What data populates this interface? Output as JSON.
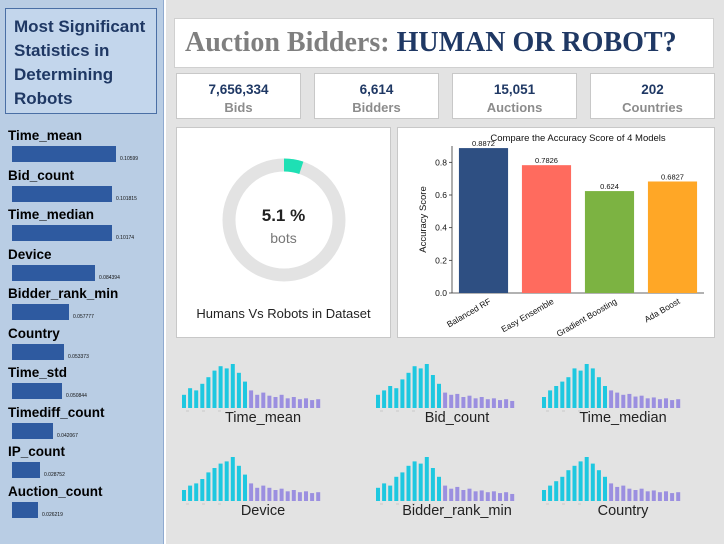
{
  "sidebar": {
    "title": "Most Significant Statistics in Determining Robots",
    "features": [
      {
        "name": "Time_mean",
        "value": 0.10599,
        "value_label": "0.10599"
      },
      {
        "name": "Bid_count",
        "value": 0.101815,
        "value_label": "0.101815"
      },
      {
        "name": "Time_median",
        "value": 0.10174,
        "value_label": "0.10174"
      },
      {
        "name": "Device",
        "value": 0.084394,
        "value_label": "0.084394"
      },
      {
        "name": "Bidder_rank_min",
        "value": 0.057777,
        "value_label": "0.057777"
      },
      {
        "name": "Country",
        "value": 0.053373,
        "value_label": "0.053373"
      },
      {
        "name": "Time_std",
        "value": 0.050844,
        "value_label": "0.050844"
      },
      {
        "name": "Timediff_count",
        "value": 0.042067,
        "value_label": "0.042067"
      },
      {
        "name": "IP_count",
        "value": 0.028752,
        "value_label": "0.028752"
      },
      {
        "name": "Auction_count",
        "value": 0.026219,
        "value_label": "0.026219"
      }
    ],
    "bar_color": "#2e5aa0"
  },
  "header": {
    "title_part1": "Auction Bidders: ",
    "title_part2": "HUMAN OR ROBOT?"
  },
  "kpis": [
    {
      "value": "7,656,334",
      "label": "Bids"
    },
    {
      "value": "6,614",
      "label": "Bidders"
    },
    {
      "value": "15,051",
      "label": "Auctions"
    },
    {
      "value": "202",
      "label": "Countries"
    }
  ],
  "donut": {
    "percent": 5.1,
    "percent_label": "5.1 %",
    "sublabel": "bots",
    "caption": "Humans Vs Robots in Dataset",
    "accent_color": "#1ee0b4",
    "track_color": "#e3e3e3"
  },
  "chart_data": [
    {
      "type": "bar",
      "title": "Compare the Accuracy Score of 4 Models",
      "ylabel": "Accuracy Score",
      "xlabel": "",
      "categories": [
        "Balanced RF",
        "Easy Ensemble",
        "Gradient Boosting",
        "Ada Boost"
      ],
      "values": [
        0.8872,
        0.7826,
        0.624,
        0.6827
      ],
      "value_labels": [
        "0.8872",
        "0.7826",
        "0.624",
        "0.6827"
      ],
      "colors": [
        "#2e4f82",
        "#ff6b5e",
        "#7cb342",
        "#ffa726"
      ],
      "ylim": [
        0,
        0.9
      ],
      "yticks": [
        0.0,
        0.2,
        0.4,
        0.6,
        0.8
      ],
      "ytick_labels": [
        "0.0",
        "0.2",
        "0.4",
        "0.6",
        "0.8"
      ],
      "grid": false
    }
  ],
  "distributions": {
    "human_color": "#1ec8e0",
    "robot_color": "#9b8fe0",
    "items": [
      {
        "label": "Time_mean",
        "human": [
          0.3,
          0.45,
          0.4,
          0.55,
          0.7,
          0.85,
          0.95,
          0.9,
          1.0,
          0.8,
          0.6
        ],
        "robot": [
          0.4,
          0.3,
          0.35,
          0.28,
          0.25,
          0.3,
          0.22,
          0.25,
          0.2,
          0.22,
          0.18,
          0.2
        ]
      },
      {
        "label": "Bid_count",
        "human": [
          0.3,
          0.4,
          0.5,
          0.45,
          0.65,
          0.8,
          0.95,
          0.9,
          1.0,
          0.75,
          0.55
        ],
        "robot": [
          0.35,
          0.3,
          0.32,
          0.25,
          0.28,
          0.22,
          0.25,
          0.2,
          0.22,
          0.18,
          0.2,
          0.16
        ]
      },
      {
        "label": "Time_median",
        "human": [
          0.25,
          0.4,
          0.5,
          0.6,
          0.7,
          0.9,
          0.85,
          1.0,
          0.9,
          0.7,
          0.5
        ],
        "robot": [
          0.4,
          0.35,
          0.3,
          0.32,
          0.26,
          0.28,
          0.22,
          0.24,
          0.2,
          0.22,
          0.18,
          0.2
        ]
      },
      {
        "label": "Device",
        "human": [
          0.25,
          0.35,
          0.4,
          0.5,
          0.65,
          0.75,
          0.85,
          0.9,
          1.0,
          0.8,
          0.6
        ],
        "robot": [
          0.4,
          0.3,
          0.35,
          0.3,
          0.25,
          0.28,
          0.22,
          0.25,
          0.2,
          0.22,
          0.18,
          0.2
        ]
      },
      {
        "label": "Bidder_rank_min",
        "human": [
          0.3,
          0.4,
          0.35,
          0.55,
          0.65,
          0.8,
          0.9,
          0.85,
          1.0,
          0.75,
          0.55
        ],
        "robot": [
          0.35,
          0.28,
          0.32,
          0.25,
          0.28,
          0.22,
          0.24,
          0.2,
          0.22,
          0.18,
          0.2,
          0.16
        ]
      },
      {
        "label": "Country",
        "human": [
          0.25,
          0.35,
          0.45,
          0.55,
          0.7,
          0.8,
          0.9,
          1.0,
          0.85,
          0.7,
          0.55
        ],
        "robot": [
          0.4,
          0.32,
          0.35,
          0.28,
          0.25,
          0.28,
          0.22,
          0.24,
          0.2,
          0.22,
          0.18,
          0.2
        ]
      }
    ]
  }
}
